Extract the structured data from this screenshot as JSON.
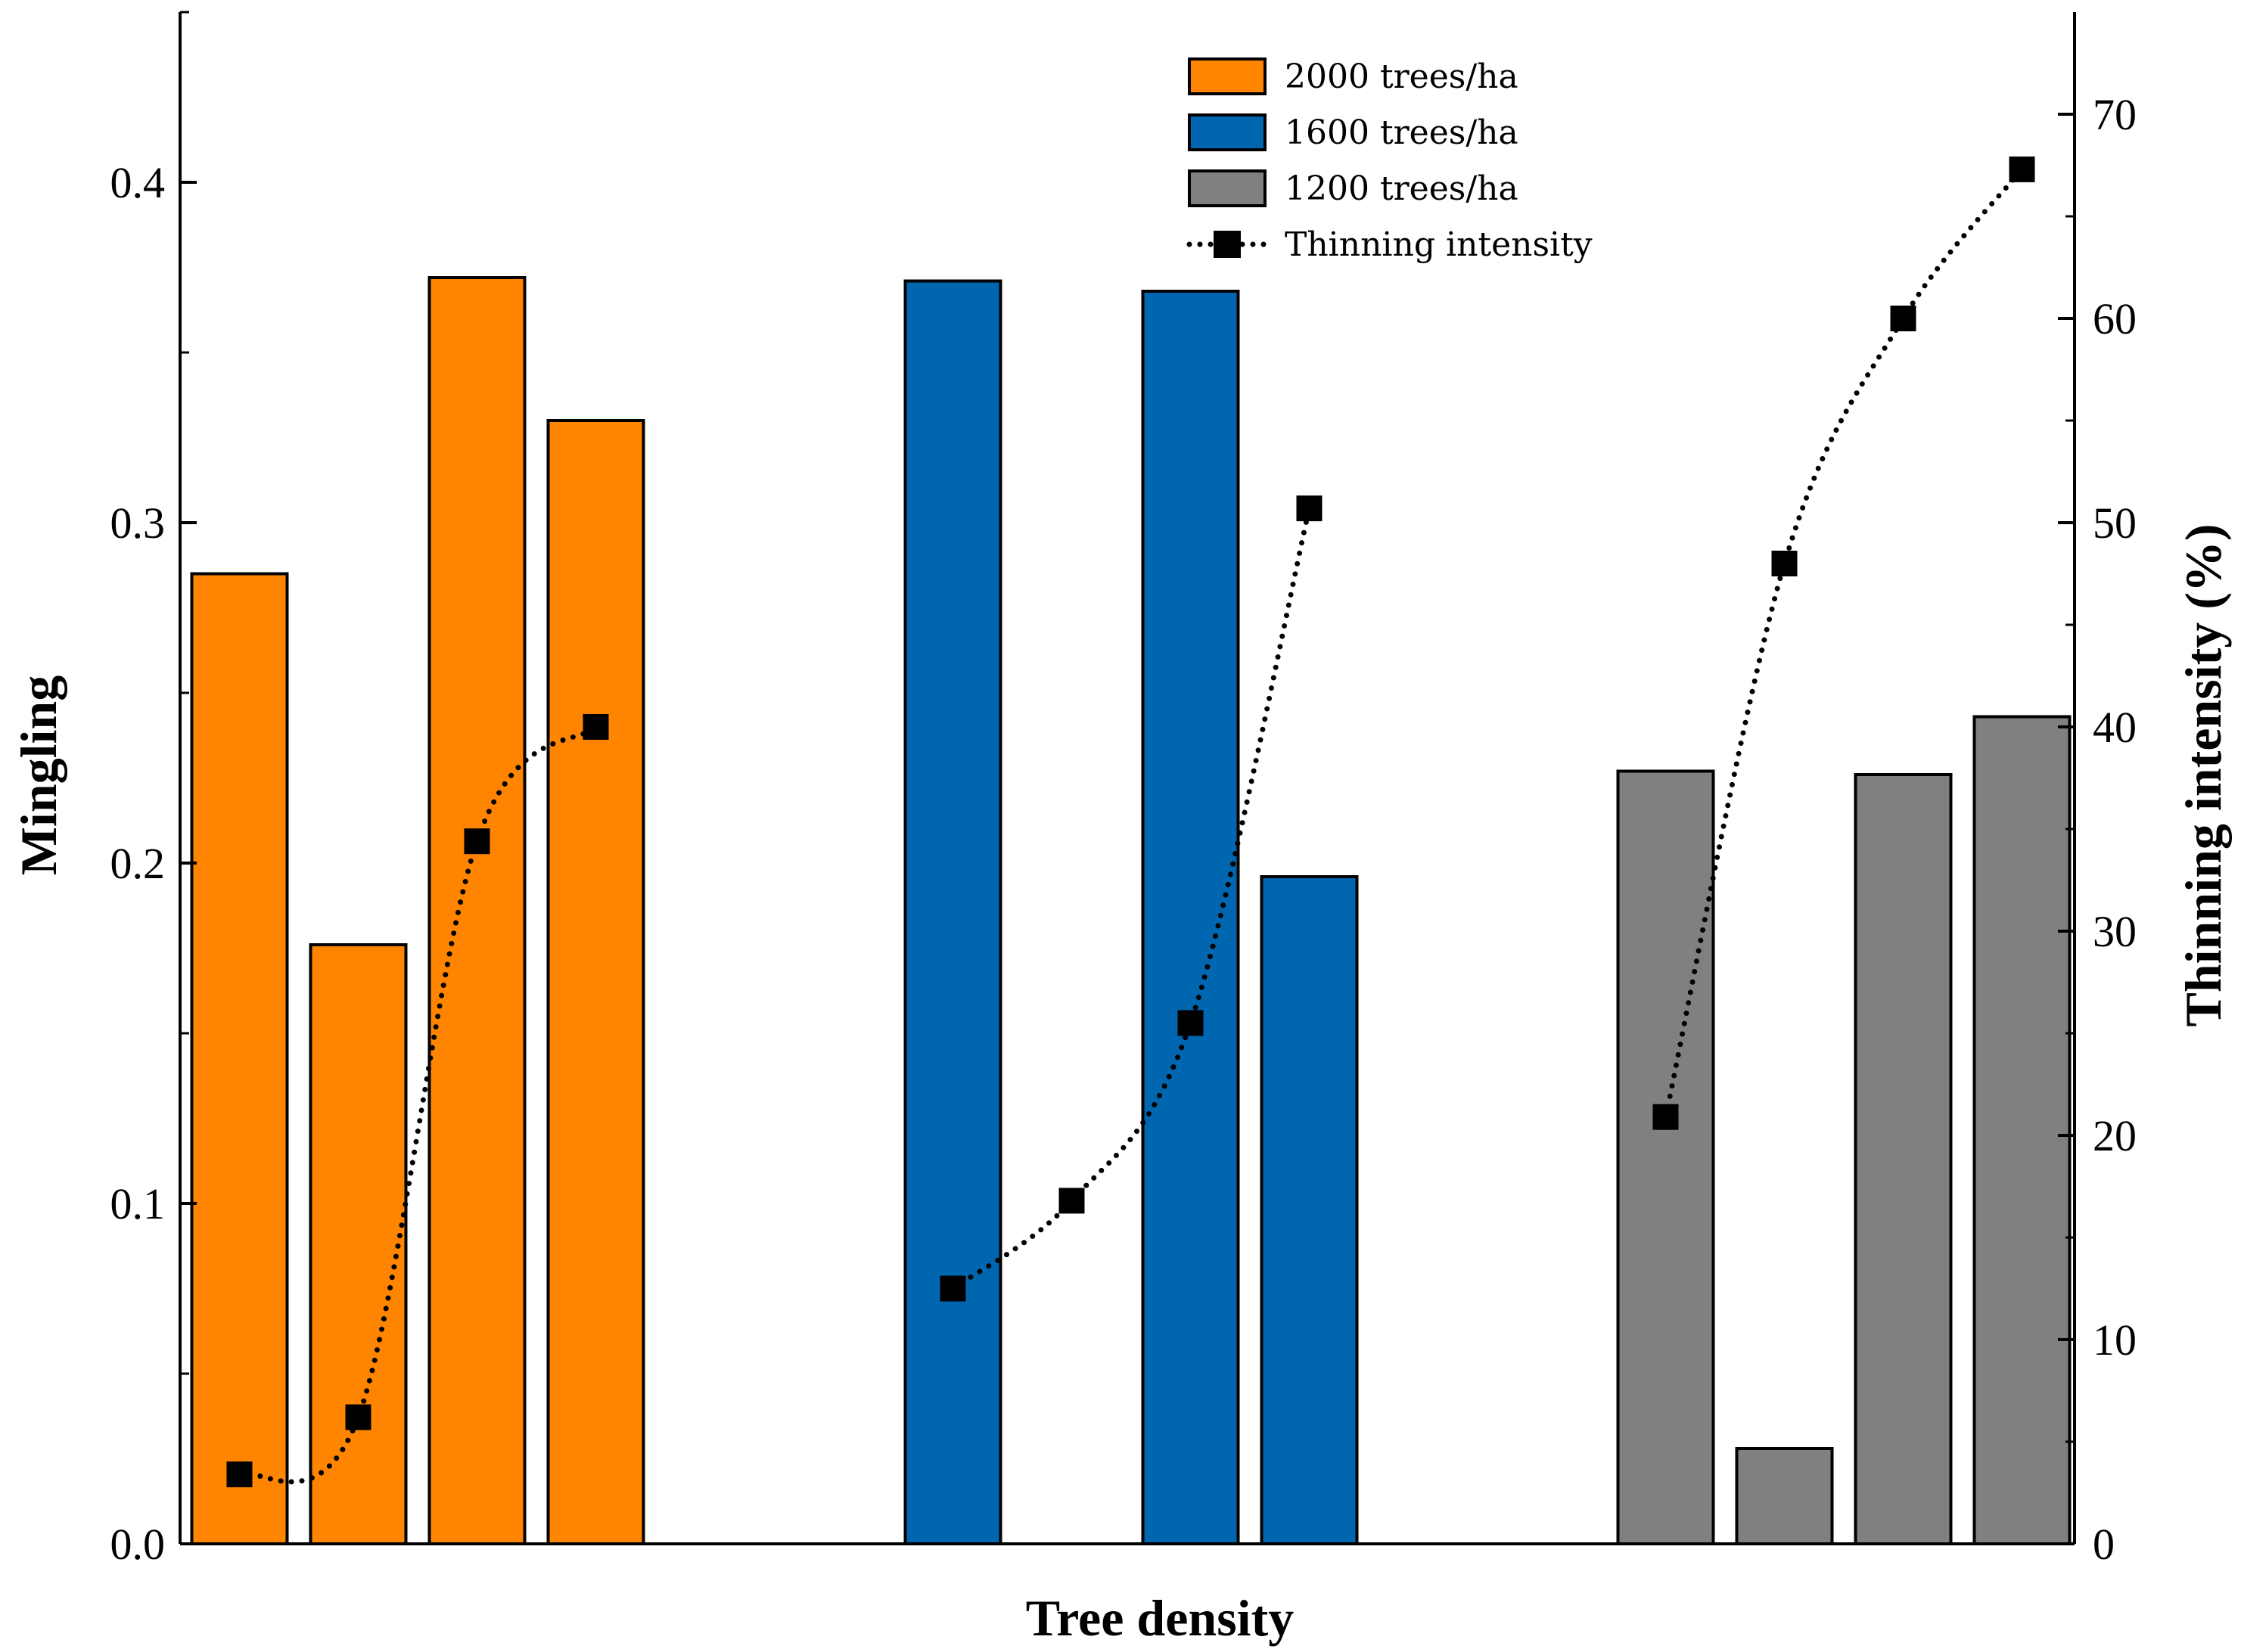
{
  "chart_data": {
    "type": "bar",
    "xlabel": "Tree density",
    "ylabel": "Mingling",
    "ylabel_right": "Thinning intensity (%)",
    "ylim": [
      0,
      0.45
    ],
    "ylim_right": [
      0,
      75
    ],
    "yticks": [
      0.0,
      0.1,
      0.2,
      0.3,
      0.4
    ],
    "yticks_labels": [
      "0.0",
      "0.1",
      "0.2",
      "0.3",
      "0.4"
    ],
    "yticks_right": [
      0,
      10,
      20,
      30,
      40,
      50,
      60,
      70
    ],
    "yticks_right_labels": [
      "0",
      "10",
      "20",
      "30",
      "40",
      "50",
      "60",
      "70"
    ],
    "groups": [
      {
        "name": "2000 trees/ha",
        "color": "#FF8400",
        "mingling": [
          0.285,
          0.176,
          0.372,
          0.33
        ],
        "thinning_intensity": [
          3.4,
          6.2,
          34.4,
          40.0
        ]
      },
      {
        "name": "1600 trees/ha",
        "color": "#0066AF",
        "mingling": [
          0.371,
          null,
          0.368,
          0.196
        ],
        "thinning_intensity": [
          12.5,
          16.8,
          25.5,
          50.7
        ]
      },
      {
        "name": "1200 trees/ha",
        "color": "#808080",
        "mingling": [
          0.227,
          0.028,
          0.226,
          0.243
        ],
        "thinning_intensity": [
          20.9,
          48.0,
          60.0,
          67.3
        ]
      }
    ],
    "line_series": {
      "name": "Thinning intensity",
      "color": "#000000",
      "style": "dotted",
      "marker": "square"
    },
    "legend": [
      "2000 trees/ha",
      "1600 trees/ha",
      "1200 trees/ha",
      "Thinning intensity"
    ],
    "legend_position": "top-center"
  }
}
